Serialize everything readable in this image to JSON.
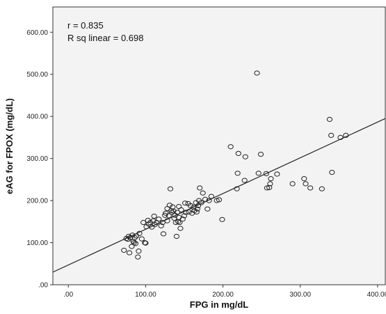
{
  "chart_data": {
    "type": "scatter",
    "xlabel": "FPG in mg/dL",
    "ylabel": "eAG for FPOX (mg/dL)",
    "xlim": [
      -20,
      410
    ],
    "ylim": [
      0,
      660
    ],
    "x_ticks": [
      0,
      100,
      200,
      300,
      400
    ],
    "y_ticks": [
      0,
      100,
      200,
      300,
      400,
      500,
      600
    ],
    "x_tick_labels": [
      ".00",
      "100.00",
      "200.00",
      "300.00",
      "400.00"
    ],
    "y_tick_labels": [
      ".00",
      "100.00",
      "200.00",
      "300.00",
      "400.00",
      "500.00",
      "600.00"
    ],
    "annotations": [
      "r = 0.835",
      "R sq linear = 0.698"
    ],
    "grid": false,
    "fit_line": {
      "x": [
        -20,
        410
      ],
      "y": [
        30,
        395
      ]
    },
    "points": [
      [
        72,
        82
      ],
      [
        75,
        110
      ],
      [
        77,
        108
      ],
      [
        78,
        115
      ],
      [
        79,
        76
      ],
      [
        80,
        112
      ],
      [
        82,
        91
      ],
      [
        83,
        118
      ],
      [
        84,
        103
      ],
      [
        85,
        100
      ],
      [
        86,
        112
      ],
      [
        87,
        98
      ],
      [
        88,
        116
      ],
      [
        90,
        66
      ],
      [
        91,
        80
      ],
      [
        92,
        122
      ],
      [
        95,
        109
      ],
      [
        97,
        148
      ],
      [
        99,
        100
      ],
      [
        100,
        99
      ],
      [
        101,
        138
      ],
      [
        103,
        153
      ],
      [
        104,
        144
      ],
      [
        106,
        148
      ],
      [
        108,
        137
      ],
      [
        110,
        152
      ],
      [
        111,
        163
      ],
      [
        112,
        143
      ],
      [
        114,
        148
      ],
      [
        117,
        156
      ],
      [
        120,
        140
      ],
      [
        122,
        148
      ],
      [
        123,
        121
      ],
      [
        125,
        165
      ],
      [
        126,
        170
      ],
      [
        128,
        152
      ],
      [
        128,
        181
      ],
      [
        130,
        164
      ],
      [
        131,
        189
      ],
      [
        132,
        228
      ],
      [
        133,
        176
      ],
      [
        134,
        172
      ],
      [
        135,
        185
      ],
      [
        136,
        175
      ],
      [
        137,
        158
      ],
      [
        138,
        165
      ],
      [
        139,
        148
      ],
      [
        140,
        115
      ],
      [
        141,
        172
      ],
      [
        142,
        150
      ],
      [
        143,
        160
      ],
      [
        143,
        186
      ],
      [
        144,
        148
      ],
      [
        145,
        134
      ],
      [
        146,
        178
      ],
      [
        148,
        156
      ],
      [
        150,
        164
      ],
      [
        151,
        194
      ],
      [
        152,
        172
      ],
      [
        155,
        193
      ],
      [
        156,
        173
      ],
      [
        158,
        188
      ],
      [
        160,
        170
      ],
      [
        162,
        184
      ],
      [
        163,
        176
      ],
      [
        165,
        195
      ],
      [
        166,
        173
      ],
      [
        167,
        180
      ],
      [
        168,
        188
      ],
      [
        169,
        200
      ],
      [
        170,
        230
      ],
      [
        172,
        195
      ],
      [
        174,
        218
      ],
      [
        177,
        203
      ],
      [
        180,
        180
      ],
      [
        182,
        200
      ],
      [
        185,
        210
      ],
      [
        192,
        200
      ],
      [
        195,
        202
      ],
      [
        199,
        155
      ],
      [
        210,
        328
      ],
      [
        218,
        228
      ],
      [
        219,
        265
      ],
      [
        220,
        312
      ],
      [
        228,
        248
      ],
      [
        229,
        304
      ],
      [
        244,
        503
      ],
      [
        246,
        265
      ],
      [
        249,
        310
      ],
      [
        256,
        264
      ],
      [
        257,
        230
      ],
      [
        260,
        231
      ],
      [
        261,
        240
      ],
      [
        262,
        252
      ],
      [
        270,
        263
      ],
      [
        290,
        240
      ],
      [
        305,
        252
      ],
      [
        307,
        240
      ],
      [
        313,
        230
      ],
      [
        328,
        228
      ],
      [
        338,
        393
      ],
      [
        340,
        355
      ],
      [
        341,
        267
      ],
      [
        352,
        350
      ],
      [
        359,
        355
      ]
    ]
  }
}
